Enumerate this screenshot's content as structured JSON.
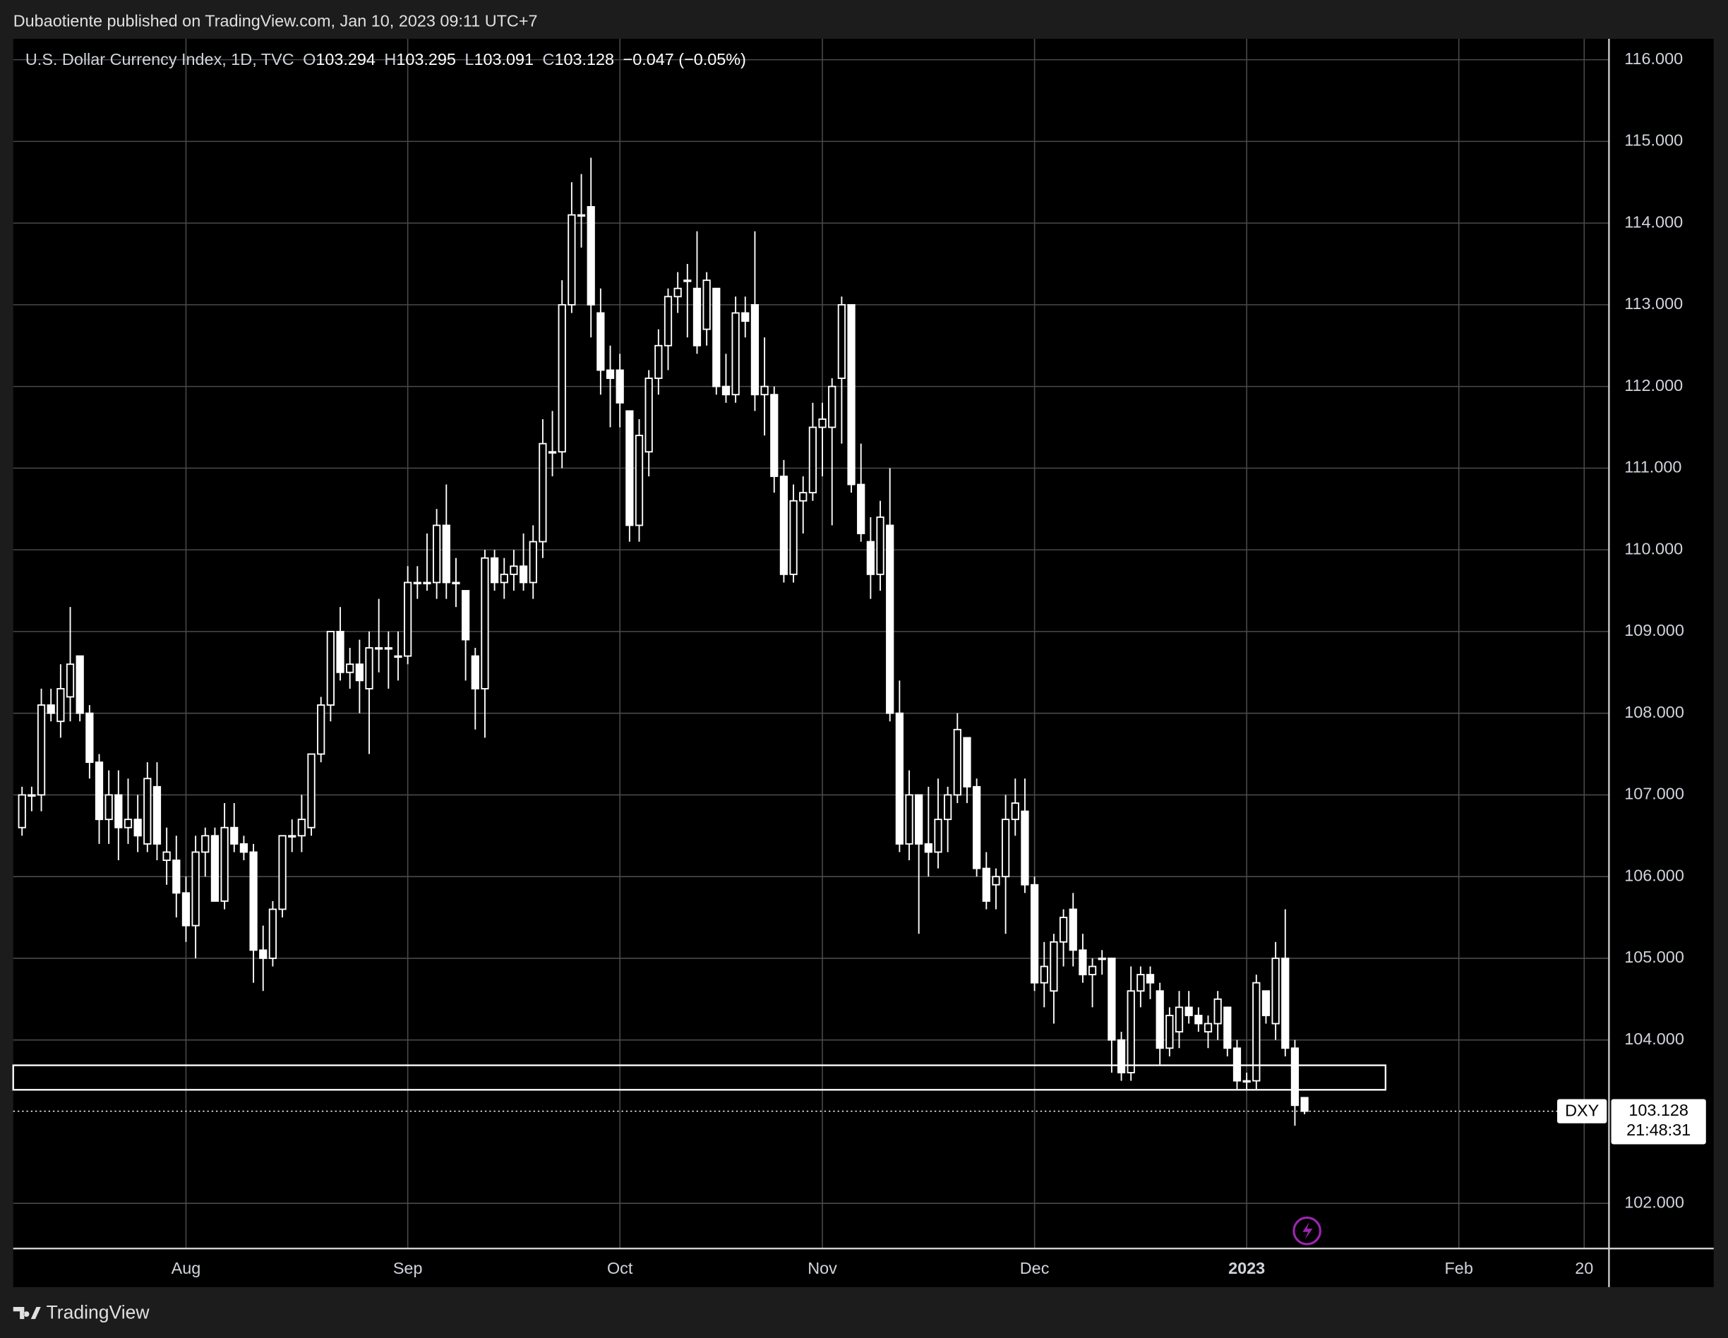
{
  "page": {
    "published": "Dubaotiente published on TradingView.com, Jan 10, 2023 09:11 UTC+7",
    "brand": "TradingView"
  },
  "chart_data": {
    "type": "candlestick",
    "title": "U.S. Dollar Currency Index, 1D, TVC",
    "ohlc_labels": [
      "O",
      "H",
      "L",
      "C"
    ],
    "change": "−0.047 (−0.05%)",
    "symbol": "DXY",
    "countdown": "21:48:31",
    "up_color": "#000000",
    "down_color": "#ffffff",
    "border_color": "#ffffff",
    "grid": true,
    "grid_color": "#4a4a4a",
    "xlim": [
      -0.914,
      164.571
    ],
    "xticks": [
      {
        "value": 17,
        "label": "Aug"
      },
      {
        "value": 40,
        "label": "Sep"
      },
      {
        "value": 62,
        "label": "Oct"
      },
      {
        "value": 83,
        "label": "Nov"
      },
      {
        "value": 105,
        "label": "Dec"
      },
      {
        "value": 127,
        "label": "2023"
      },
      {
        "value": 149,
        "label": "Feb"
      },
      {
        "value": 162,
        "label": "20"
      }
    ],
    "ylim": [
      101.447,
      116.256
    ],
    "yticks": [
      {
        "value": 102,
        "label": "102.000"
      },
      {
        "value": 104,
        "label": "104.000"
      },
      {
        "value": 105,
        "label": "105.000"
      },
      {
        "value": 106,
        "label": "106.000"
      },
      {
        "value": 107,
        "label": "107.000"
      },
      {
        "value": 108,
        "label": "108.000"
      },
      {
        "value": 109,
        "label": "109.000"
      },
      {
        "value": 110,
        "label": "110.000"
      },
      {
        "value": 111,
        "label": "111.000"
      },
      {
        "value": 112,
        "label": "112.000"
      },
      {
        "value": 113,
        "label": "113.000"
      },
      {
        "value": 114,
        "label": "114.000"
      },
      {
        "value": 115,
        "label": "115.000"
      },
      {
        "value": 116,
        "label": "116.000"
      }
    ],
    "zone": {
      "top": 103.69,
      "bottom": 103.39,
      "x_end": 141.4
    },
    "open": [
      106.6,
      107.0,
      107.0,
      108.1,
      107.9,
      108.2,
      108.7,
      108.0,
      107.4,
      106.7,
      107.0,
      106.6,
      106.7,
      106.4,
      107.1,
      106.2,
      106.2,
      105.8,
      105.4,
      106.3,
      106.5,
      105.7,
      106.6,
      106.4,
      106.3,
      105.1,
      105.0,
      105.6,
      106.5,
      106.5,
      106.6,
      107.5,
      108.1,
      109.0,
      108.5,
      108.6,
      108.3,
      108.8,
      108.8,
      108.7,
      108.7,
      109.6,
      109.6,
      109.6,
      110.3,
      109.6,
      109.5,
      108.7,
      108.3,
      109.9,
      109.6,
      109.7,
      109.8,
      109.6,
      110.1,
      111.2,
      111.2,
      113.0,
      114.1,
      114.2,
      112.9,
      112.2,
      112.2,
      111.7,
      110.3,
      111.2,
      112.1,
      112.5,
      113.1,
      113.3,
      113.2,
      112.7,
      113.2,
      112.0,
      111.9,
      112.9,
      113.0,
      111.9,
      111.9,
      110.9,
      109.7,
      110.6,
      110.7,
      111.5,
      111.5,
      112.1,
      113.0,
      110.8,
      110.1,
      109.7,
      110.3,
      108.0,
      106.4,
      107.0,
      106.4,
      106.3,
      106.7,
      107.0,
      107.7,
      107.1,
      106.1,
      105.9,
      106.0,
      106.7,
      106.8,
      105.9,
      104.7,
      104.6,
      105.2,
      105.6,
      105.1,
      104.8,
      105.0,
      105.0,
      104.0,
      103.6,
      104.6,
      104.8,
      104.6,
      103.9,
      104.1,
      104.4,
      104.3,
      104.1,
      104.2,
      104.4,
      103.9,
      103.5,
      103.5,
      104.6,
      104.2,
      105.0,
      103.9,
      103.294
    ],
    "high": [
      107.1,
      107.1,
      108.3,
      108.3,
      108.6,
      109.3,
      108.7,
      108.1,
      107.5,
      107.3,
      107.3,
      107.2,
      107.0,
      107.4,
      107.4,
      106.6,
      106.5,
      106.0,
      106.5,
      106.6,
      106.6,
      106.9,
      106.9,
      106.5,
      106.4,
      105.4,
      105.7,
      106.5,
      106.7,
      107.0,
      107.5,
      108.2,
      109.0,
      109.3,
      108.8,
      108.9,
      109.0,
      109.4,
      109.0,
      109.0,
      109.8,
      109.8,
      110.2,
      110.5,
      110.8,
      109.9,
      109.5,
      108.8,
      110.0,
      110.0,
      109.9,
      110.0,
      110.2,
      110.3,
      111.6,
      111.7,
      113.3,
      114.5,
      114.6,
      114.8,
      113.2,
      112.5,
      112.4,
      111.7,
      111.6,
      112.2,
      112.7,
      113.2,
      113.4,
      113.5,
      113.9,
      113.4,
      113.2,
      112.4,
      113.1,
      113.1,
      113.9,
      112.6,
      112.0,
      111.1,
      110.8,
      110.9,
      111.8,
      111.8,
      112.1,
      113.1,
      113.0,
      111.3,
      110.4,
      110.6,
      111.0,
      108.4,
      107.3,
      107.0,
      107.1,
      107.2,
      107.1,
      108.0,
      107.7,
      107.2,
      106.3,
      106.1,
      107.0,
      107.2,
      107.2,
      106.0,
      105.2,
      105.3,
      105.6,
      105.8,
      105.3,
      105.0,
      105.1,
      105.0,
      104.1,
      104.9,
      104.9,
      104.9,
      104.7,
      104.4,
      104.6,
      104.6,
      104.4,
      104.3,
      104.6,
      104.4,
      104.0,
      103.6,
      104.8,
      104.6,
      105.2,
      105.6,
      104.0,
      103.295
    ],
    "low": [
      106.5,
      106.8,
      106.8,
      107.9,
      107.7,
      107.9,
      107.9,
      107.2,
      106.4,
      106.4,
      106.2,
      106.4,
      106.3,
      106.3,
      106.2,
      105.9,
      105.5,
      105.2,
      105.0,
      106.0,
      105.7,
      105.6,
      106.3,
      106.2,
      104.7,
      104.6,
      104.9,
      105.5,
      106.3,
      106.3,
      106.5,
      107.4,
      107.9,
      108.4,
      108.3,
      108.0,
      107.5,
      108.5,
      108.3,
      108.4,
      108.6,
      109.4,
      109.5,
      109.4,
      109.4,
      109.3,
      108.4,
      107.8,
      107.7,
      109.5,
      109.4,
      109.5,
      109.5,
      109.4,
      109.9,
      110.9,
      111.0,
      112.9,
      113.7,
      112.6,
      111.9,
      111.5,
      111.5,
      110.1,
      110.1,
      110.9,
      111.9,
      112.2,
      112.9,
      112.6,
      112.4,
      112.5,
      111.9,
      111.8,
      111.8,
      112.6,
      111.7,
      111.4,
      110.7,
      109.6,
      109.6,
      110.2,
      110.6,
      110.9,
      110.3,
      111.3,
      110.7,
      110.1,
      109.4,
      109.5,
      107.9,
      106.3,
      106.2,
      105.3,
      106.0,
      106.1,
      106.3,
      106.9,
      106.9,
      106.0,
      105.6,
      105.6,
      105.3,
      106.5,
      105.8,
      104.6,
      104.4,
      104.2,
      104.9,
      104.9,
      104.7,
      104.4,
      104.8,
      103.6,
      103.5,
      103.5,
      104.4,
      104.5,
      103.7,
      103.8,
      103.9,
      104.2,
      104.1,
      103.9,
      104.0,
      103.8,
      103.4,
      103.4,
      103.4,
      104.2,
      104.0,
      103.8,
      102.95,
      103.091
    ],
    "close": [
      107.0,
      107.0,
      108.1,
      108.0,
      108.3,
      108.6,
      108.0,
      107.4,
      106.7,
      107.0,
      106.6,
      106.7,
      106.5,
      107.2,
      106.4,
      106.3,
      105.8,
      105.4,
      106.3,
      106.5,
      105.7,
      106.6,
      106.4,
      106.3,
      105.1,
      105.0,
      105.6,
      106.5,
      106.5,
      106.7,
      107.5,
      108.1,
      109.0,
      108.5,
      108.6,
      108.4,
      108.8,
      108.8,
      108.8,
      108.7,
      109.6,
      109.6,
      109.6,
      110.3,
      109.6,
      109.6,
      108.9,
      108.3,
      109.9,
      109.6,
      109.7,
      109.8,
      109.6,
      110.1,
      111.3,
      111.2,
      113.0,
      114.1,
      114.1,
      113.0,
      112.2,
      112.1,
      111.8,
      110.3,
      111.4,
      112.1,
      112.5,
      113.1,
      113.2,
      113.3,
      112.5,
      113.3,
      112.0,
      111.9,
      112.9,
      112.8,
      111.9,
      112.0,
      110.9,
      109.7,
      110.6,
      110.7,
      111.5,
      111.6,
      112.0,
      113.0,
      110.8,
      110.2,
      109.7,
      110.4,
      108.0,
      106.4,
      107.0,
      106.4,
      106.3,
      106.7,
      107.0,
      107.8,
      107.1,
      106.1,
      105.7,
      106.0,
      106.7,
      106.9,
      105.9,
      104.7,
      104.9,
      105.2,
      105.5,
      105.1,
      104.8,
      104.9,
      105.0,
      104.0,
      103.6,
      104.6,
      104.8,
      104.7,
      103.9,
      104.3,
      104.4,
      104.3,
      104.2,
      104.2,
      104.5,
      103.9,
      103.5,
      103.5,
      104.7,
      104.3,
      105.0,
      103.9,
      103.2,
      103.128
    ]
  }
}
